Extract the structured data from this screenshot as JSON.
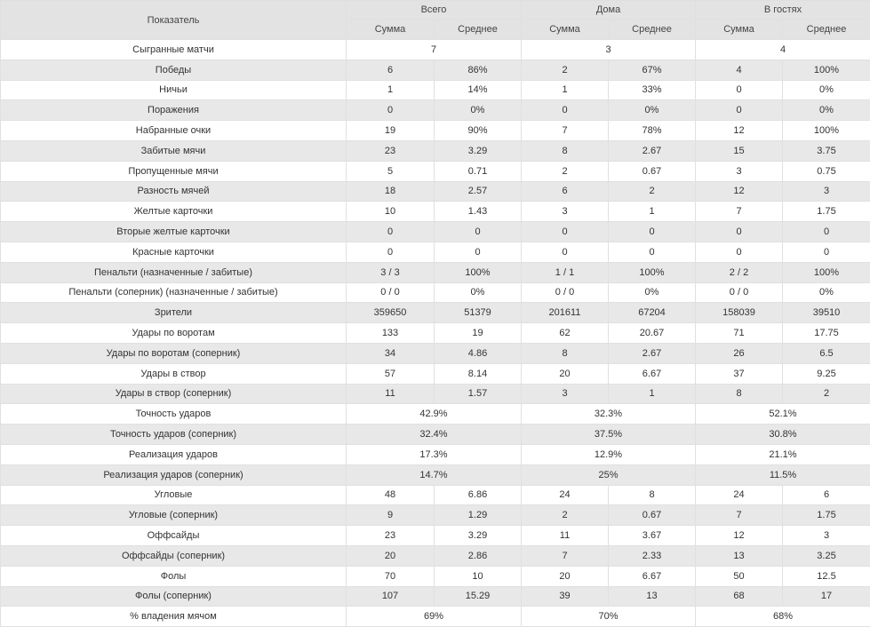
{
  "header": {
    "indicator": "Показатель",
    "groups": [
      "Всего",
      "Дома",
      "В гостях"
    ],
    "sub": [
      "Сумма",
      "Среднее"
    ]
  },
  "rows": [
    {
      "label": "Сыгранные матчи",
      "merged": [
        "7",
        "3",
        "4"
      ]
    },
    {
      "label": "Победы",
      "values": [
        "6",
        "86%",
        "2",
        "67%",
        "4",
        "100%"
      ]
    },
    {
      "label": "Ничьи",
      "values": [
        "1",
        "14%",
        "1",
        "33%",
        "0",
        "0%"
      ]
    },
    {
      "label": "Поражения",
      "values": [
        "0",
        "0%",
        "0",
        "0%",
        "0",
        "0%"
      ]
    },
    {
      "label": "Набранные очки",
      "values": [
        "19",
        "90%",
        "7",
        "78%",
        "12",
        "100%"
      ]
    },
    {
      "label": "Забитые мячи",
      "values": [
        "23",
        "3.29",
        "8",
        "2.67",
        "15",
        "3.75"
      ]
    },
    {
      "label": "Пропущенные мячи",
      "values": [
        "5",
        "0.71",
        "2",
        "0.67",
        "3",
        "0.75"
      ]
    },
    {
      "label": "Разность мячей",
      "values": [
        "18",
        "2.57",
        "6",
        "2",
        "12",
        "3"
      ]
    },
    {
      "label": "Желтые карточки",
      "values": [
        "10",
        "1.43",
        "3",
        "1",
        "7",
        "1.75"
      ]
    },
    {
      "label": "Вторые желтые карточки",
      "values": [
        "0",
        "0",
        "0",
        "0",
        "0",
        "0"
      ]
    },
    {
      "label": "Красные карточки",
      "values": [
        "0",
        "0",
        "0",
        "0",
        "0",
        "0"
      ]
    },
    {
      "label": "Пенальти (назначенные / забитые)",
      "values": [
        "3 / 3",
        "100%",
        "1 / 1",
        "100%",
        "2 / 2",
        "100%"
      ]
    },
    {
      "label": "Пенальти (соперник) (назначенные / забитые)",
      "values": [
        "0 / 0",
        "0%",
        "0 / 0",
        "0%",
        "0 / 0",
        "0%"
      ]
    },
    {
      "label": "Зрители",
      "values": [
        "359650",
        "51379",
        "201611",
        "67204",
        "158039",
        "39510"
      ]
    },
    {
      "label": "Удары по воротам",
      "values": [
        "133",
        "19",
        "62",
        "20.67",
        "71",
        "17.75"
      ]
    },
    {
      "label": "Удары по воротам (соперник)",
      "values": [
        "34",
        "4.86",
        "8",
        "2.67",
        "26",
        "6.5"
      ]
    },
    {
      "label": "Удары в створ",
      "values": [
        "57",
        "8.14",
        "20",
        "6.67",
        "37",
        "9.25"
      ]
    },
    {
      "label": "Удары в створ (соперник)",
      "values": [
        "11",
        "1.57",
        "3",
        "1",
        "8",
        "2"
      ]
    },
    {
      "label": "Точность ударов",
      "merged": [
        "42.9%",
        "32.3%",
        "52.1%"
      ]
    },
    {
      "label": "Точность ударов (соперник)",
      "merged": [
        "32.4%",
        "37.5%",
        "30.8%"
      ]
    },
    {
      "label": "Реализация ударов",
      "merged": [
        "17.3%",
        "12.9%",
        "21.1%"
      ]
    },
    {
      "label": "Реализация ударов (соперник)",
      "merged": [
        "14.7%",
        "25%",
        "11.5%"
      ]
    },
    {
      "label": "Угловые",
      "values": [
        "48",
        "6.86",
        "24",
        "8",
        "24",
        "6"
      ]
    },
    {
      "label": "Угловые (соперник)",
      "values": [
        "9",
        "1.29",
        "2",
        "0.67",
        "7",
        "1.75"
      ]
    },
    {
      "label": "Оффсайды",
      "values": [
        "23",
        "3.29",
        "11",
        "3.67",
        "12",
        "3"
      ]
    },
    {
      "label": "Оффсайды (соперник)",
      "values": [
        "20",
        "2.86",
        "7",
        "2.33",
        "13",
        "3.25"
      ]
    },
    {
      "label": "Фолы",
      "values": [
        "70",
        "10",
        "20",
        "6.67",
        "50",
        "12.5"
      ]
    },
    {
      "label": "Фолы (соперник)",
      "values": [
        "107",
        "15.29",
        "39",
        "13",
        "68",
        "17"
      ]
    },
    {
      "label": "% владения мячом",
      "merged": [
        "69%",
        "70%",
        "68%"
      ]
    }
  ]
}
